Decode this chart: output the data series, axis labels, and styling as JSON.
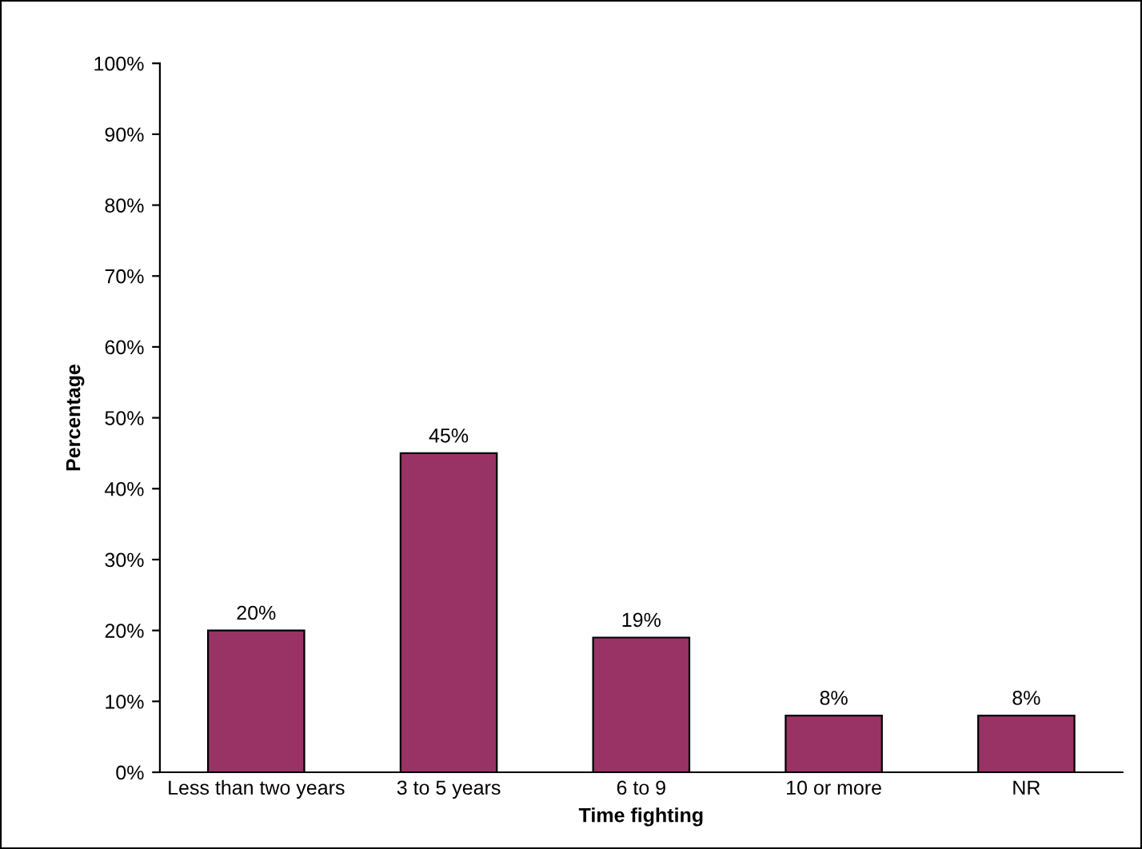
{
  "chart_data": {
    "type": "bar",
    "xlabel": "Time fighting",
    "ylabel": "Percentage",
    "categories": [
      "Less than two years",
      "3 to 5 years",
      "6 to 9",
      "10 or more",
      "NR"
    ],
    "values": [
      20,
      45,
      19,
      8,
      8
    ],
    "value_labels": [
      "20%",
      "45%",
      "19%",
      "8%",
      "8%"
    ],
    "color": "#993366",
    "ylim": [
      0,
      100
    ],
    "yticks": [
      {
        "value": 0,
        "label": "0%"
      },
      {
        "value": 10,
        "label": "10%"
      },
      {
        "value": 20,
        "label": "20%"
      },
      {
        "value": 30,
        "label": "30%"
      },
      {
        "value": 40,
        "label": "40%"
      },
      {
        "value": 50,
        "label": "50%"
      },
      {
        "value": 60,
        "label": "60%"
      },
      {
        "value": 70,
        "label": "70%"
      },
      {
        "value": 80,
        "label": "80%"
      },
      {
        "value": 90,
        "label": "90%"
      },
      {
        "value": 100,
        "label": "100%"
      }
    ],
    "grid": false,
    "legend": false
  }
}
